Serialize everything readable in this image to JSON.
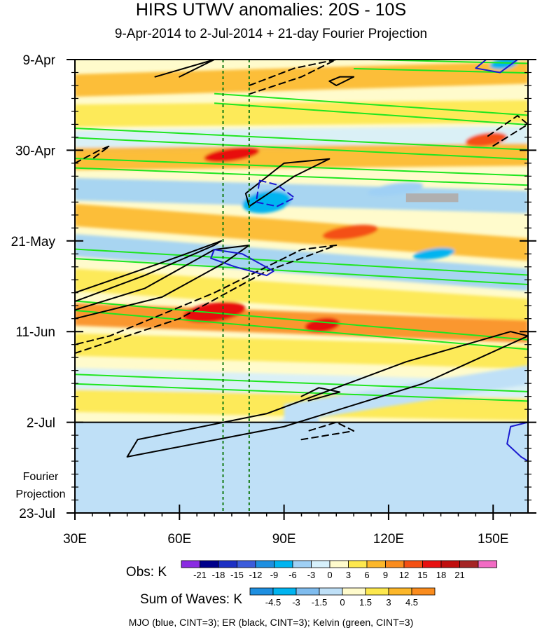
{
  "chart_data": {
    "type": "heatmap",
    "title": "HIRS UTWV anomalies: 20S - 10S",
    "subtitle": "9-Apr-2014 to 2-Jul-2014 + 21-day Fourier Projection",
    "x_ticks": [
      {
        "value": 30,
        "label": "30E"
      },
      {
        "value": 60,
        "label": "60E"
      },
      {
        "value": 90,
        "label": "90E"
      },
      {
        "value": 120,
        "label": "120E"
      },
      {
        "value": 150,
        "label": "150E"
      }
    ],
    "xlim": [
      30,
      160
    ],
    "y_ticks": [
      {
        "value": 0,
        "label": "9-Apr"
      },
      {
        "value": 21,
        "label": "30-Apr"
      },
      {
        "value": 42,
        "label": "21-May"
      },
      {
        "value": 63,
        "label": "11-Jun"
      },
      {
        "value": 84,
        "label": "2-Jul"
      },
      {
        "value": 105,
        "label": "23-Jul"
      }
    ],
    "ylim_days": [
      0,
      105
    ],
    "projection_start_day": 84,
    "projection_label": "Fourier\nProjection",
    "reference_lines_lon": [
      72.5,
      80
    ],
    "obs_colorbar": {
      "label": "Obs: K",
      "levels": [
        "-21",
        "-18",
        "-15",
        "-12",
        "-9",
        "-6",
        "-3",
        "0",
        "3",
        "6",
        "9",
        "12",
        "15",
        "18",
        "21"
      ],
      "colors": [
        "#8a2be2",
        "#00008b",
        "#1c2fc4",
        "#3b5bdb",
        "#1e8fe0",
        "#00b4f0",
        "#9fd0f5",
        "#d6f0fb",
        "#fffbcc",
        "#fde84e",
        "#fcb72a",
        "#fa8c1e",
        "#f45014",
        "#e81010",
        "#c00e0e",
        "#a52525",
        "#f26bc4"
      ]
    },
    "waves_colorbar": {
      "label": "Sum of Waves: K",
      "levels": [
        "-4.5",
        "-3",
        "-1.5",
        "0",
        "1.5",
        "3",
        "4.5"
      ],
      "colors": [
        "#1e8fe0",
        "#00b4f0",
        "#7fbcee",
        "#bfe0f7",
        "#fffbcc",
        "#fde84e",
        "#fcb72a",
        "#fa8c1e"
      ]
    },
    "anomaly_bands": [
      {
        "start_lon": 30,
        "start_day": 6,
        "end_lon": 160,
        "end_day": 3,
        "value": 6
      },
      {
        "start_lon": 30,
        "start_day": 13,
        "end_lon": 160,
        "end_day": 12,
        "value": 3
      },
      {
        "start_lon": 30,
        "start_day": 19,
        "end_lon": 160,
        "end_day": 18,
        "value": -3
      },
      {
        "start_lon": 30,
        "start_day": 23,
        "end_lon": 160,
        "end_day": 22,
        "value": 6
      },
      {
        "start_lon": 30,
        "start_day": 30,
        "end_lon": 160,
        "end_day": 33,
        "value": -6
      },
      {
        "start_lon": 30,
        "start_day": 36,
        "end_lon": 160,
        "end_day": 44,
        "value": 6
      },
      {
        "start_lon": 30,
        "start_day": 43,
        "end_lon": 160,
        "end_day": 51,
        "value": -6
      },
      {
        "start_lon": 30,
        "start_day": 51,
        "end_lon": 160,
        "end_day": 58,
        "value": 3
      },
      {
        "start_lon": 30,
        "start_day": 59,
        "end_lon": 160,
        "end_day": 63,
        "value": 9
      },
      {
        "start_lon": 30,
        "start_day": 66,
        "end_lon": 160,
        "end_day": 69,
        "value": 3
      },
      {
        "start_lon": 30,
        "start_day": 74,
        "end_lon": 160,
        "end_day": 77,
        "value": -3
      },
      {
        "start_lon": 30,
        "start_day": 79,
        "end_lon": 160,
        "end_day": 81,
        "value": 3
      }
    ],
    "anomaly_blobs": [
      {
        "lon": 75,
        "day": 22,
        "rx": 8,
        "ry": 1.5,
        "value": 15
      },
      {
        "lon": 70,
        "day": 58.5,
        "rx": 9,
        "ry": 2.2,
        "value": 15
      },
      {
        "lon": 101,
        "day": 61.5,
        "rx": 5,
        "ry": 1.6,
        "value": 15
      },
      {
        "lon": 85,
        "day": 33,
        "rx": 7,
        "ry": 2.5,
        "value": -9
      },
      {
        "lon": 122,
        "day": 30,
        "rx": 8,
        "ry": 1.3,
        "value": -6
      },
      {
        "lon": 148,
        "day": 18.5,
        "rx": 6,
        "ry": 1.5,
        "value": 12
      },
      {
        "lon": 153,
        "day": 1,
        "rx": 4,
        "ry": 1.2,
        "value": -9
      },
      {
        "lon": 109,
        "day": 40,
        "rx": 8,
        "ry": 1.5,
        "value": 12
      },
      {
        "lon": 133,
        "day": 45,
        "rx": 6,
        "ry": 1.2,
        "value": -9
      }
    ],
    "missing_data_box": {
      "lon": [
        125,
        140
      ],
      "day": [
        31,
        33
      ]
    },
    "projection_field": [
      {
        "start_lon": 45,
        "start_day": 93,
        "end_lon": 100,
        "end_day": 84,
        "value": -1.5
      },
      {
        "start_lon": 60,
        "start_day": 105,
        "end_lon": 160,
        "end_day": 88,
        "value": -1
      },
      {
        "start_lon": 90,
        "start_day": 82,
        "end_lon": 160,
        "end_day": 73,
        "value": -1.5
      }
    ],
    "contours": {
      "mjo_blue": [
        {
          "style": "dashed",
          "points": [
            [
              83,
              28
            ],
            [
              88,
              29
            ],
            [
              93,
              32
            ],
            [
              88,
              34
            ],
            [
              82,
              33
            ],
            [
              83,
              28
            ]
          ]
        },
        {
          "style": "solid",
          "points": [
            [
              70,
              44
            ],
            [
              78,
              45
            ],
            [
              87,
              49
            ],
            [
              85,
              50
            ],
            [
              76,
              48
            ],
            [
              69,
              46
            ],
            [
              70,
              44
            ]
          ]
        },
        {
          "style": "solid",
          "points": [
            [
              148,
              0
            ],
            [
              157,
              0
            ],
            [
              152,
              3
            ],
            [
              145,
              2
            ],
            [
              148,
              0
            ]
          ]
        },
        {
          "style": "solid",
          "points": [
            [
              160,
              84
            ],
            [
              155,
              85
            ],
            [
              154,
              89
            ],
            [
              158,
              92
            ],
            [
              160,
              93
            ]
          ]
        }
      ],
      "er_black": [
        {
          "style": "solid",
          "points": [
            [
              30,
              54
            ],
            [
              55,
              47
            ],
            [
              72,
              42
            ],
            [
              70,
              43
            ],
            [
              50,
              50
            ],
            [
              30,
              56
            ]
          ]
        },
        {
          "style": "solid",
          "points": [
            [
              30,
              60
            ],
            [
              55,
              55
            ],
            [
              73,
              47
            ],
            [
              80,
              43
            ],
            [
              70,
              44
            ],
            [
              50,
              53
            ],
            [
              30,
              58
            ]
          ]
        },
        {
          "style": "dashed",
          "points": [
            [
              30,
              68
            ],
            [
              60,
              60
            ],
            [
              85,
              49
            ],
            [
              105,
              43
            ],
            [
              95,
              44
            ],
            [
              70,
              54
            ],
            [
              40,
              64
            ],
            [
              30,
              66
            ]
          ]
        },
        {
          "style": "solid",
          "points": [
            [
              80,
              34
            ],
            [
              93,
              27
            ],
            [
              103,
              23
            ],
            [
              90,
              24
            ],
            [
              79,
              31
            ],
            [
              80,
              34
            ]
          ]
        },
        {
          "style": "solid",
          "points": [
            [
              60,
              4
            ],
            [
              70,
              0
            ],
            [
              53,
              4
            ]
          ]
        },
        {
          "style": "dashed",
          "points": [
            [
              80,
              8
            ],
            [
              95,
              4
            ],
            [
              105,
              0
            ],
            [
              93,
              2
            ],
            [
              80,
              6
            ]
          ]
        },
        {
          "style": "dashed",
          "points": [
            [
              30,
              24
            ],
            [
              37,
              21
            ],
            [
              40,
              20
            ],
            [
              35,
              23
            ]
          ]
        },
        {
          "style": "solid",
          "points": [
            [
              105,
              6
            ],
            [
              110,
              4
            ],
            [
              106,
              4
            ],
            [
              103,
              5
            ],
            [
              105,
              6
            ]
          ]
        },
        {
          "style": "dashed",
          "points": [
            [
              150,
              20
            ],
            [
              160,
              15
            ],
            [
              157,
              13
            ],
            [
              148,
              18
            ]
          ]
        },
        {
          "style": "solid",
          "points": [
            [
              45,
              92
            ],
            [
              90,
              85
            ],
            [
              130,
              75
            ],
            [
              160,
              64
            ],
            [
              155,
              63
            ],
            [
              125,
              70
            ],
            [
              85,
              82
            ],
            [
              48,
              88
            ],
            [
              45,
              92
            ]
          ]
        },
        {
          "style": "solid",
          "points": [
            [
              97,
              79
            ],
            [
              106,
              77
            ],
            [
              100,
              76
            ],
            [
              95,
              78
            ]
          ]
        },
        {
          "style": "dashed",
          "points": [
            [
              95,
              88
            ],
            [
              110,
              86
            ],
            [
              105,
              84
            ],
            [
              97,
              86
            ]
          ]
        }
      ],
      "kelvin_green": [
        {
          "points": [
            [
              30,
              17
            ],
            [
              160,
              22
            ]
          ]
        },
        {
          "points": [
            [
              30,
              24
            ],
            [
              160,
              28
            ]
          ]
        },
        {
          "points": [
            [
              30,
              45
            ],
            [
              160,
              51
            ]
          ]
        },
        {
          "points": [
            [
              30,
              57
            ],
            [
              160,
              66
            ]
          ]
        },
        {
          "points": [
            [
              30,
              74
            ],
            [
              160,
              78
            ]
          ]
        },
        {
          "points": [
            [
              70,
              9
            ],
            [
              160,
              14
            ]
          ]
        },
        {
          "points": [
            [
              110,
              1
            ],
            [
              160,
              2
            ]
          ]
        }
      ]
    },
    "contour_legend": "MJO (blue, CINT=3); ER (black, CINT=3); Kelvin (green, CINT=3)"
  },
  "colors": {
    "mjo": "#1a1ad0",
    "er": "#000000",
    "kelvin": "#1fe61f",
    "reference_line": "#127a12",
    "missing": "#b0b0b0"
  }
}
